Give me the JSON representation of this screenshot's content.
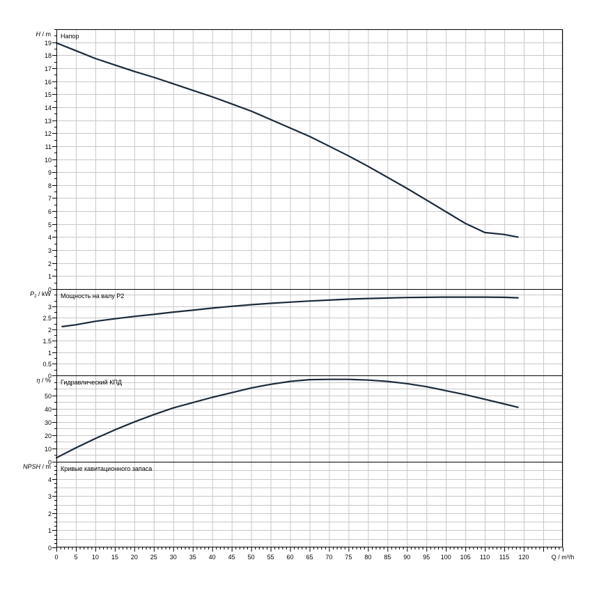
{
  "chart_data": {
    "type": "line",
    "x_axis": {
      "label": "Q / m³/h",
      "ticks": [
        0,
        5,
        10,
        15,
        20,
        25,
        30,
        35,
        40,
        45,
        50,
        55,
        60,
        65,
        70,
        75,
        80,
        85,
        90,
        95,
        100,
        105,
        110,
        115,
        120
      ],
      "min": 0,
      "max": 130,
      "minor_step": 1
    },
    "grid": true,
    "panels": [
      {
        "id": "head",
        "title": "Напор",
        "ylabel_symbol": "H",
        "ylabel_unit": " / m",
        "ylim": [
          0,
          20
        ],
        "ticks": [
          0,
          1,
          2,
          3,
          4,
          5,
          6,
          7,
          8,
          9,
          10,
          11,
          12,
          13,
          14,
          15,
          16,
          17,
          18,
          19
        ],
        "tick_labels": [
          "0",
          "1",
          "2",
          "3",
          "4",
          "5",
          "6",
          "7",
          "8",
          "9",
          "10",
          "11",
          "12",
          "13",
          "14",
          "15",
          "16",
          "17",
          "18",
          "19"
        ],
        "grid_step": 1,
        "minor_step": 0.5,
        "series": [
          {
            "x": [
              0,
              5,
              10,
              15,
              20,
              25,
              30,
              35,
              40,
              45,
              50,
              55,
              60,
              65,
              70,
              75,
              80,
              85,
              90,
              95,
              100,
              105,
              110,
              115,
              118.5
            ],
            "y": [
              18.95,
              18.35,
              17.75,
              17.25,
              16.75,
              16.3,
              15.8,
              15.3,
              14.8,
              14.25,
              13.7,
              13.05,
              12.4,
              11.75,
              11.0,
              10.25,
              9.45,
              8.6,
              7.75,
              6.85,
              5.95,
              5.05,
              4.35,
              4.2,
              4.0
            ]
          }
        ]
      },
      {
        "id": "power",
        "title": "Мощность на валу P2",
        "ylabel_symbol": "P",
        "ylabel_sub": "2",
        "ylabel_unit": " / kW",
        "ylim": [
          0,
          3.75
        ],
        "ticks": [
          0,
          0.5,
          1,
          1.5,
          2,
          2.5,
          3
        ],
        "tick_labels": [
          "0",
          "0.5",
          "1",
          "1.5",
          "2",
          "2.5",
          "3"
        ],
        "grid_step": 0.5,
        "minor_step": 0.25,
        "series": [
          {
            "x": [
              1.5,
              5,
              10,
              15,
              20,
              25,
              30,
              35,
              40,
              45,
              50,
              55,
              60,
              65,
              70,
              75,
              80,
              85,
              90,
              95,
              100,
              105,
              110,
              115,
              118.5
            ],
            "y": [
              2.12,
              2.2,
              2.35,
              2.46,
              2.56,
              2.65,
              2.75,
              2.83,
              2.92,
              3.0,
              3.07,
              3.13,
              3.18,
              3.23,
              3.27,
              3.31,
              3.34,
              3.36,
              3.38,
              3.39,
              3.4,
              3.4,
              3.4,
              3.39,
              3.37
            ]
          }
        ]
      },
      {
        "id": "efficiency",
        "title": "Гидравлический КПД",
        "ylabel_symbol": "η",
        "ylabel_unit": " / %",
        "ylim": [
          0,
          65
        ],
        "ticks": [
          0,
          10,
          20,
          30,
          40,
          50
        ],
        "tick_labels": [
          "0",
          "10",
          "20",
          "30",
          "40",
          "50"
        ],
        "grid_step": 5,
        "minor_step": 5,
        "series": [
          {
            "x": [
              0,
              5,
              10,
              15,
              20,
              25,
              30,
              35,
              40,
              45,
              50,
              55,
              60,
              65,
              70,
              75,
              80,
              85,
              90,
              95,
              100,
              105,
              110,
              115,
              118.5
            ],
            "y": [
              3,
              10.5,
              17.5,
              24,
              30,
              35.5,
              40.5,
              44.5,
              48.5,
              52,
              55.5,
              58.3,
              60.5,
              61.8,
              62,
              62,
              61.5,
              60.5,
              58.8,
              56.5,
              53.5,
              50.5,
              47,
              43.5,
              41
            ]
          }
        ]
      },
      {
        "id": "npsh",
        "title": "Кривые кавитационного запаса",
        "ylabel_symbol": "NPSH",
        "ylabel_unit": " / m",
        "ylim": [
          0,
          5
        ],
        "ticks": [
          0,
          1,
          2,
          3,
          4
        ],
        "tick_labels": [
          "0",
          "1",
          "2",
          "3",
          "4"
        ],
        "grid_step": 0.5,
        "minor_step": 0.25,
        "series": []
      }
    ]
  }
}
